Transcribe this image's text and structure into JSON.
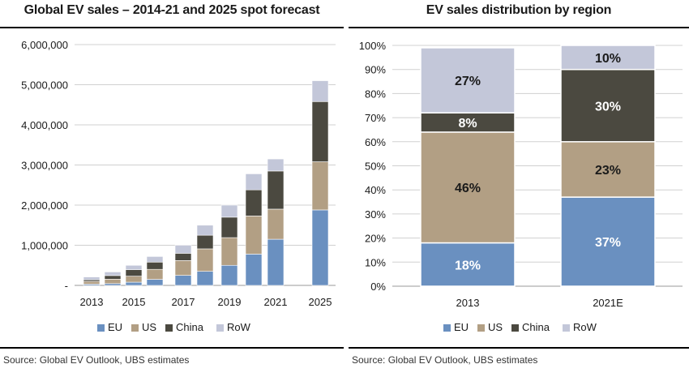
{
  "left_chart": {
    "title": "Global EV sales – 2014-21 and 2025 spot forecast",
    "source": "Source: Global EV Outlook, UBS estimates"
  },
  "right_chart": {
    "title": "EV sales distribution by region",
    "source": "Source: Global EV Outlook, UBS estimates"
  },
  "chart_data": [
    {
      "type": "bar",
      "stacked": true,
      "title": "Global EV sales – 2014-21 and 2025 spot forecast",
      "categories": [
        "2013",
        "2014",
        "2015",
        "2016",
        "2017",
        "2018",
        "2019",
        "2020",
        "2021",
        "2025"
      ],
      "tick_labels_shown": [
        "2013",
        "",
        "2015",
        "",
        "2017",
        "",
        "2019",
        "",
        "2021",
        "2025"
      ],
      "series": [
        {
          "name": "EU",
          "color": "#6a90c0",
          "values": [
            30000,
            45000,
            80000,
            150000,
            250000,
            350000,
            500000,
            780000,
            1150000,
            1880000
          ]
        },
        {
          "name": "US",
          "color": "#b29f84",
          "values": [
            70000,
            110000,
            150000,
            250000,
            370000,
            560000,
            690000,
            950000,
            750000,
            1200000
          ]
        },
        {
          "name": "China",
          "color": "#4b4940",
          "values": [
            40000,
            90000,
            160000,
            180000,
            180000,
            340000,
            510000,
            650000,
            950000,
            1500000
          ]
        },
        {
          "name": "RoW",
          "color": "#c3c7d9",
          "values": [
            70000,
            90000,
            110000,
            140000,
            200000,
            250000,
            300000,
            400000,
            300000,
            520000
          ]
        }
      ],
      "ylim": [
        0,
        6000000
      ],
      "yticks": [
        "-",
        "1,000,000",
        "2,000,000",
        "3,000,000",
        "4,000,000",
        "5,000,000",
        "6,000,000"
      ],
      "grid": true,
      "legend": "bottom"
    },
    {
      "type": "bar",
      "stacked": true,
      "percent": true,
      "title": "EV sales distribution by region",
      "categories": [
        "2013",
        "2021E"
      ],
      "series": [
        {
          "name": "EU",
          "color": "#6a90c0",
          "values": [
            18,
            37
          ],
          "labels": [
            "18%",
            "37%"
          ]
        },
        {
          "name": "US",
          "color": "#b29f84",
          "values": [
            46,
            23
          ],
          "labels": [
            "46%",
            "23%"
          ]
        },
        {
          "name": "China",
          "color": "#4b4940",
          "values": [
            8,
            30
          ],
          "labels": [
            "8%",
            "30%"
          ]
        },
        {
          "name": "RoW",
          "color": "#c3c7d9",
          "values": [
            27,
            10
          ],
          "labels": [
            "27%",
            "10%"
          ]
        }
      ],
      "ylim": [
        0,
        100
      ],
      "yticks": [
        "0%",
        "10%",
        "20%",
        "30%",
        "40%",
        "50%",
        "60%",
        "70%",
        "80%",
        "90%",
        "100%"
      ],
      "grid": true,
      "legend": "bottom"
    }
  ]
}
